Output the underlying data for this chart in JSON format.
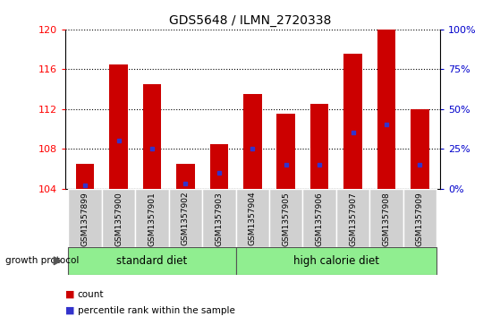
{
  "title": "GDS5648 / ILMN_2720338",
  "samples": [
    "GSM1357899",
    "GSM1357900",
    "GSM1357901",
    "GSM1357902",
    "GSM1357903",
    "GSM1357904",
    "GSM1357905",
    "GSM1357906",
    "GSM1357907",
    "GSM1357908",
    "GSM1357909"
  ],
  "counts": [
    106.5,
    116.5,
    114.5,
    106.5,
    108.5,
    113.5,
    111.5,
    112.5,
    117.5,
    120.0,
    112.0
  ],
  "percentile_ranks": [
    2.0,
    30.0,
    25.0,
    3.0,
    10.0,
    25.0,
    15.0,
    15.0,
    35.0,
    40.0,
    15.0
  ],
  "bar_color": "#cc0000",
  "dot_color": "#3333cc",
  "ylim_left": [
    104,
    120
  ],
  "ylim_right": [
    0,
    100
  ],
  "yticks_left": [
    104,
    108,
    112,
    116,
    120
  ],
  "yticks_right": [
    0,
    25,
    50,
    75,
    100
  ],
  "ytick_labels_right": [
    "0%",
    "25%",
    "50%",
    "75%",
    "100%"
  ],
  "group_label_prefix": "growth protocol",
  "legend_count_label": "count",
  "legend_percentile_label": "percentile rank within the sample",
  "bar_width": 0.55,
  "tick_bg_color": "#d0d0d0",
  "group_color": "#90ee90",
  "group_color_dark": "#3cb043"
}
